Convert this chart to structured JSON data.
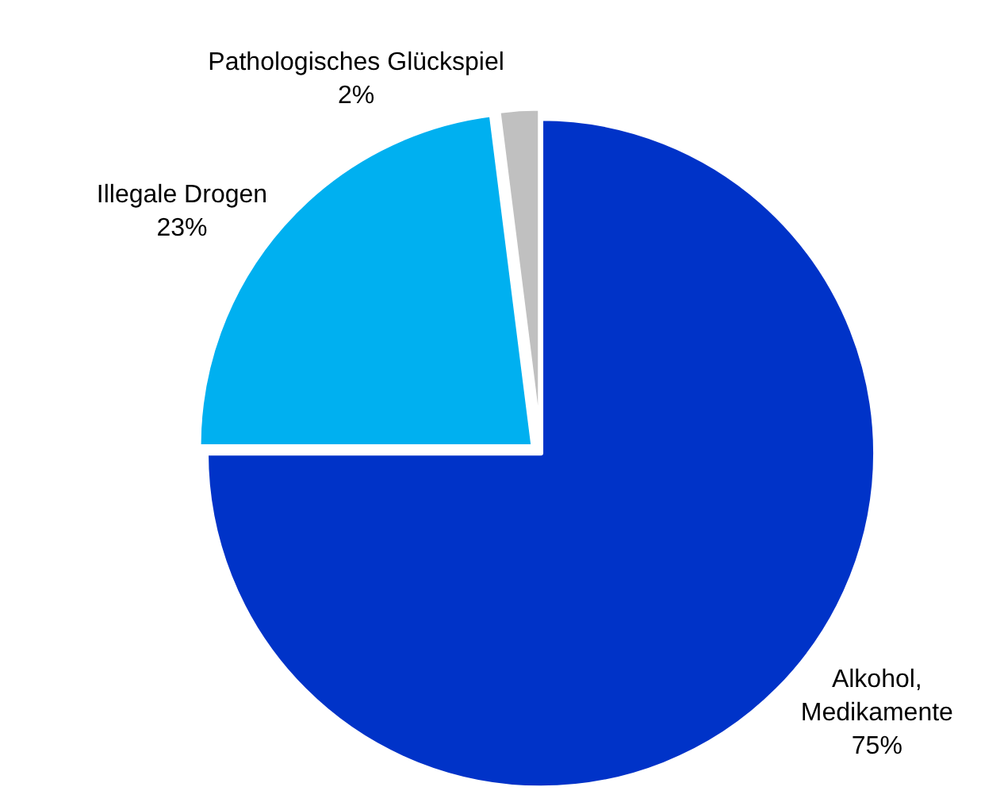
{
  "chart_data": {
    "type": "pie",
    "categories": [
      "Alkohol, Medikamente",
      "Illegale Drogen",
      "Pathologisches Glückspiel"
    ],
    "values": [
      75,
      23,
      2
    ],
    "colors": [
      "#0033c8",
      "#00b0f0",
      "#c0c0c0"
    ],
    "value_labels": [
      "75%",
      "23%",
      "2%"
    ],
    "legend": false
  }
}
